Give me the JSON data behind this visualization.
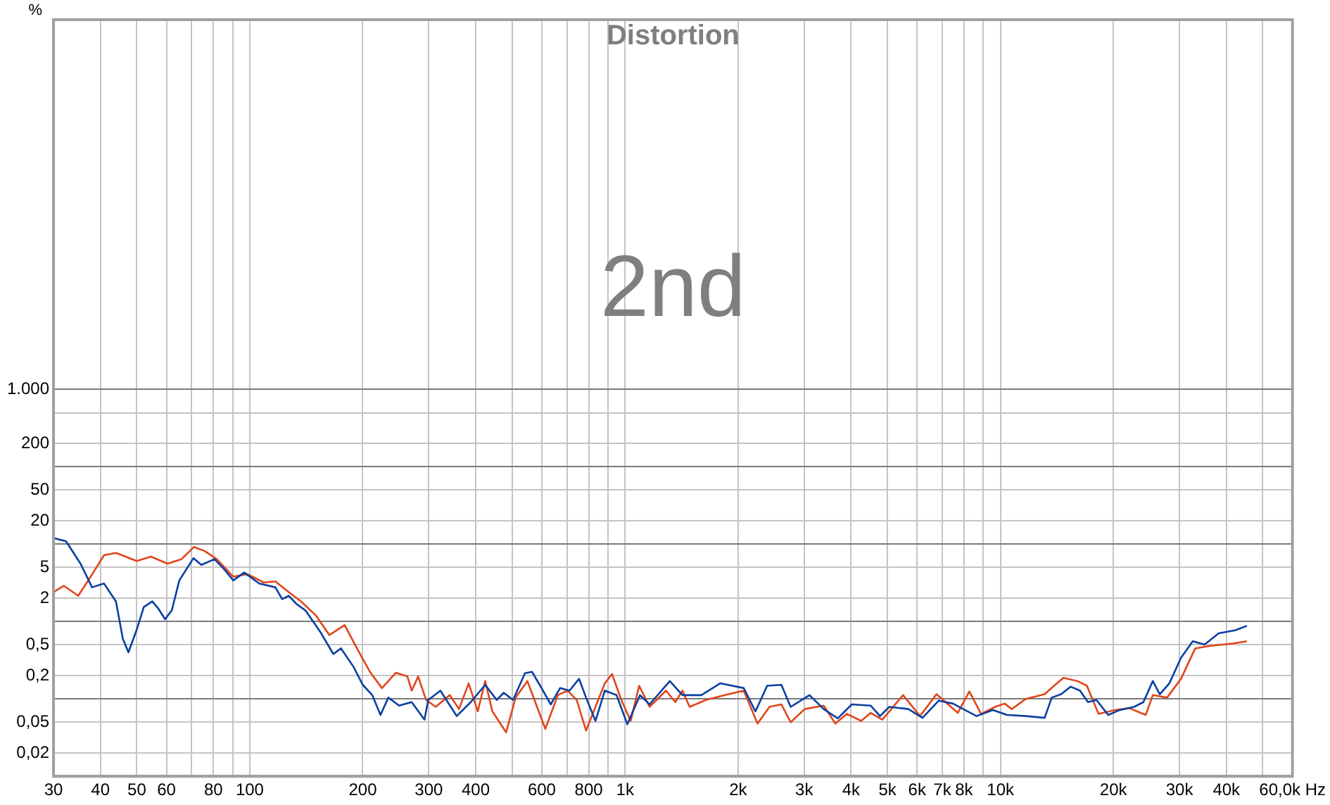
{
  "chart_data": {
    "type": "line",
    "title": "Distortion",
    "ylabel": "%",
    "annotations": [
      "2nd"
    ],
    "log": "xy",
    "grid": true,
    "xlim": [
      30,
      60000
    ],
    "xticks": [
      30,
      40,
      50,
      60,
      {
        "value": 70,
        "label": null
      },
      80,
      {
        "value": 90,
        "label": null
      },
      100,
      200,
      300,
      400,
      {
        "value": 500,
        "label": null
      },
      600,
      {
        "value": 700,
        "label": null
      },
      800,
      {
        "value": 900,
        "label": null
      },
      {
        "value": 1000,
        "label": "1k"
      },
      {
        "value": 2000,
        "label": "2k"
      },
      {
        "value": 3000,
        "label": "3k"
      },
      {
        "value": 4000,
        "label": "4k"
      },
      {
        "value": 5000,
        "label": "5k"
      },
      {
        "value": 6000,
        "label": "6k"
      },
      {
        "value": 7000,
        "label": "7k"
      },
      {
        "value": 8000,
        "label": "8k"
      },
      {
        "value": 9000,
        "label": null
      },
      {
        "value": 10000,
        "label": "10k"
      },
      {
        "value": 20000,
        "label": "20k"
      },
      {
        "value": 30000,
        "label": "30k"
      },
      {
        "value": 40000,
        "label": "40k"
      },
      {
        "value": 50000,
        "label": null
      },
      {
        "value": 60000,
        "label": "60,0k Hz"
      }
    ],
    "ylim": [
      0.01,
      60000000
    ],
    "yticks": [
      {
        "value": 0.02,
        "label": "0,02"
      },
      {
        "value": 0.05,
        "label": "0,05"
      },
      {
        "value": 0.1,
        "label": null
      },
      {
        "value": 0.2,
        "label": "0,2"
      },
      {
        "value": 0.5,
        "label": "0,5"
      },
      {
        "value": 1,
        "label": null
      },
      2,
      5,
      {
        "value": 10,
        "label": null
      },
      20,
      50,
      {
        "value": 100,
        "label": null
      },
      200,
      {
        "value": 500,
        "label": null
      },
      {
        "value": 1000,
        "label": "1.000"
      }
    ],
    "series": [
      {
        "color": "#0b3fa3",
        "x": [
          30,
          32.4,
          35.4,
          38,
          40.9,
          44,
          45.9,
          47.5,
          50,
          52.2,
          55,
          57,
          59.5,
          62,
          64.9,
          70.8,
          74.3,
          80.5,
          85.3,
          90.4,
          96.6,
          106,
          117,
          122,
          127,
          133,
          141,
          154,
          167,
          175,
          189,
          200,
          212,
          223,
          234,
          250,
          270,
          292,
          299,
          322,
          356,
          388,
          424,
          455,
          475,
          503,
          541,
          565,
          599,
          634,
          671,
          711,
          754,
          787,
          834,
          883,
          949,
          1014,
          1096,
          1162,
          1316,
          1422,
          1597,
          1792,
          2071,
          2225,
          2391,
          2609,
          2762,
          3100,
          3381,
          3687,
          4018,
          4510,
          4777,
          5058,
          5684,
          6200,
          6853,
          7475,
          8043,
          8636,
          9550,
          10420,
          11690,
          13120,
          13700,
          14520,
          15390,
          16300,
          17110,
          18030,
          19370,
          20830,
          22720,
          24050,
          25470,
          26590,
          28190,
          30290,
          32550,
          34990,
          38150,
          42200,
          45380
        ],
        "values": [
          12,
          10.9,
          5.6,
          2.77,
          3.1,
          1.82,
          0.6,
          0.4,
          0.79,
          1.54,
          1.82,
          1.48,
          1.07,
          1.4,
          3.4,
          6.6,
          5.4,
          6.4,
          4.8,
          3.4,
          4.3,
          3.1,
          2.77,
          1.95,
          2.15,
          1.7,
          1.38,
          0.74,
          0.38,
          0.45,
          0.26,
          0.152,
          0.112,
          0.062,
          0.104,
          0.082,
          0.091,
          0.054,
          0.097,
          0.128,
          0.06,
          0.091,
          0.152,
          0.097,
          0.12,
          0.097,
          0.215,
          0.224,
          0.138,
          0.085,
          0.138,
          0.128,
          0.182,
          0.104,
          0.052,
          0.128,
          0.112,
          0.047,
          0.112,
          0.085,
          0.17,
          0.112,
          0.112,
          0.159,
          0.138,
          0.069,
          0.148,
          0.152,
          0.079,
          0.112,
          0.074,
          0.056,
          0.085,
          0.082,
          0.06,
          0.079,
          0.074,
          0.057,
          0.095,
          0.087,
          0.072,
          0.06,
          0.072,
          0.062,
          0.06,
          0.057,
          0.104,
          0.115,
          0.144,
          0.128,
          0.091,
          0.097,
          0.062,
          0.072,
          0.079,
          0.091,
          0.17,
          0.115,
          0.159,
          0.34,
          0.556,
          0.505,
          0.706,
          0.77,
          0.88
        ]
      },
      {
        "color": "#e0461b",
        "x": [
          30,
          32,
          34.9,
          37.5,
          40.9,
          44,
          50,
          54.5,
          60.4,
          65.8,
          71,
          76,
          81.7,
          90.4,
          98.6,
          109,
          117,
          126,
          137,
          150,
          163,
          179,
          193,
          209,
          225,
          245,
          263,
          270,
          281,
          295,
          313,
          341,
          361,
          383,
          405,
          424,
          443,
          482,
          511,
          549,
          613,
          662,
          702,
          743,
          787,
          834,
          883,
          923,
          977,
          1035,
          1090,
          1162,
          1285,
          1361,
          1422,
          1486,
          1642,
          1845,
          2071,
          2254,
          2425,
          2609,
          2762,
          3011,
          3381,
          3633,
          3899,
          4257,
          4510,
          4845,
          5505,
          6109,
          6757,
          7699,
          8265,
          8884,
          9686,
          10260,
          10720,
          11690,
          13120,
          13900,
          14730,
          16040,
          17000,
          18260,
          20210,
          22050,
          24390,
          25470,
          27800,
          30290,
          33040,
          36050,
          41600,
          45380
        ],
        "values": [
          2.4,
          2.9,
          2.15,
          3.66,
          7.2,
          7.7,
          6.05,
          6.9,
          5.6,
          6.4,
          9.2,
          8.1,
          6.4,
          3.8,
          4.1,
          3.2,
          3.3,
          2.48,
          1.82,
          1.2,
          0.67,
          0.9,
          0.45,
          0.224,
          0.138,
          0.218,
          0.195,
          0.128,
          0.195,
          0.097,
          0.079,
          0.112,
          0.074,
          0.159,
          0.069,
          0.17,
          0.069,
          0.037,
          0.104,
          0.17,
          0.041,
          0.112,
          0.128,
          0.097,
          0.039,
          0.079,
          0.159,
          0.21,
          0.097,
          0.052,
          0.148,
          0.079,
          0.128,
          0.091,
          0.128,
          0.079,
          0.097,
          0.112,
          0.128,
          0.048,
          0.079,
          0.085,
          0.05,
          0.074,
          0.082,
          0.048,
          0.064,
          0.052,
          0.066,
          0.054,
          0.112,
          0.06,
          0.115,
          0.066,
          0.125,
          0.064,
          0.079,
          0.087,
          0.074,
          0.1,
          0.115,
          0.148,
          0.187,
          0.17,
          0.148,
          0.064,
          0.072,
          0.076,
          0.062,
          0.112,
          0.104,
          0.182,
          0.45,
          0.484,
          0.52,
          0.556
        ]
      }
    ]
  }
}
